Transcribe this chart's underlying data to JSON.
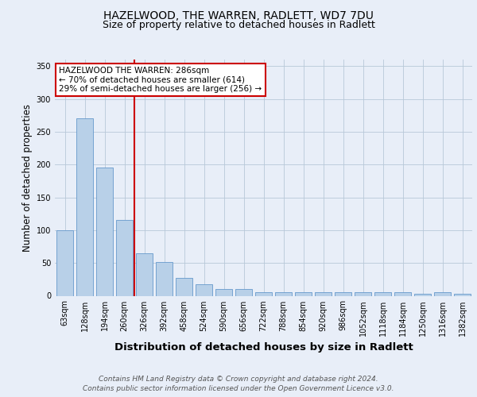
{
  "title": "HAZELWOOD, THE WARREN, RADLETT, WD7 7DU",
  "subtitle": "Size of property relative to detached houses in Radlett",
  "xlabel": "Distribution of detached houses by size in Radlett",
  "ylabel": "Number of detached properties",
  "footer_line1": "Contains HM Land Registry data © Crown copyright and database right 2024.",
  "footer_line2": "Contains public sector information licensed under the Open Government Licence v3.0.",
  "bin_labels": [
    "63sqm",
    "128sqm",
    "194sqm",
    "260sqm",
    "326sqm",
    "392sqm",
    "458sqm",
    "524sqm",
    "590sqm",
    "656sqm",
    "722sqm",
    "788sqm",
    "854sqm",
    "920sqm",
    "986sqm",
    "1052sqm",
    "1118sqm",
    "1184sqm",
    "1250sqm",
    "1316sqm",
    "1382sqm"
  ],
  "bar_heights": [
    100,
    270,
    195,
    115,
    65,
    52,
    27,
    17,
    10,
    10,
    5,
    5,
    5,
    5,
    5,
    5,
    5,
    5,
    3,
    5,
    3
  ],
  "bar_color": "#b8d0e8",
  "bar_edge_color": "#6699cc",
  "red_line_x": 3.5,
  "annotation_text": "HAZELWOOD THE WARREN: 286sqm\n← 70% of detached houses are smaller (614)\n29% of semi-detached houses are larger (256) →",
  "annotation_box_color": "#ffffff",
  "annotation_box_edge": "#cc0000",
  "ylim": [
    0,
    360
  ],
  "yticks": [
    0,
    50,
    100,
    150,
    200,
    250,
    300,
    350
  ],
  "background_color": "#e8eef8",
  "plot_bg_color": "#e8eef8",
  "title_fontsize": 10,
  "subtitle_fontsize": 9,
  "xlabel_fontsize": 9.5,
  "ylabel_fontsize": 8.5,
  "tick_fontsize": 7,
  "footer_fontsize": 6.5,
  "annot_fontsize": 7.5
}
